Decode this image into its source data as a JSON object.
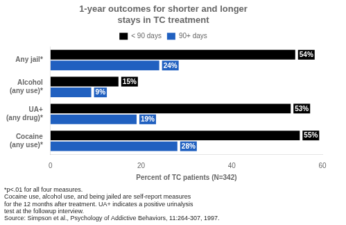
{
  "chart_data": {
    "type": "bar",
    "orientation": "horizontal",
    "title": "1-year outcomes for shorter and longer\nstays in TC treatment",
    "categories": [
      "Cocaine\n(any use)*",
      "UA+\n(any drug)*",
      "Alcohol\n(any use)*",
      "Any jail*"
    ],
    "series": [
      {
        "name": "< 90 days",
        "color": "#000000",
        "values": [
          55,
          53,
          15,
          54
        ],
        "value_labels": [
          "55%",
          "53%",
          "15%",
          "54%"
        ]
      },
      {
        "name": "90+ days",
        "color": "#2060c0",
        "values": [
          28,
          19,
          9,
          24
        ],
        "value_labels": [
          "28%",
          "19%",
          "9%",
          "24%"
        ]
      }
    ],
    "xlabel": "Percent of TC patients (N=342)",
    "xlim": [
      0,
      60
    ],
    "xticks": [
      0,
      20,
      40,
      60
    ],
    "grid": false,
    "legend": "top",
    "data_labels": true,
    "footnotes": [
      "*p<.01 for all four measures.",
      "Cocaine use, alcohol use, and being jailed are self-report measures\nfor the 12 months after treatment. UA+ indicates a positive urinalysis\ntest at the followup interview.",
      "Source: Simpson et al., Psychology of Addictive Behaviors, 11:264-307, 1997."
    ]
  }
}
